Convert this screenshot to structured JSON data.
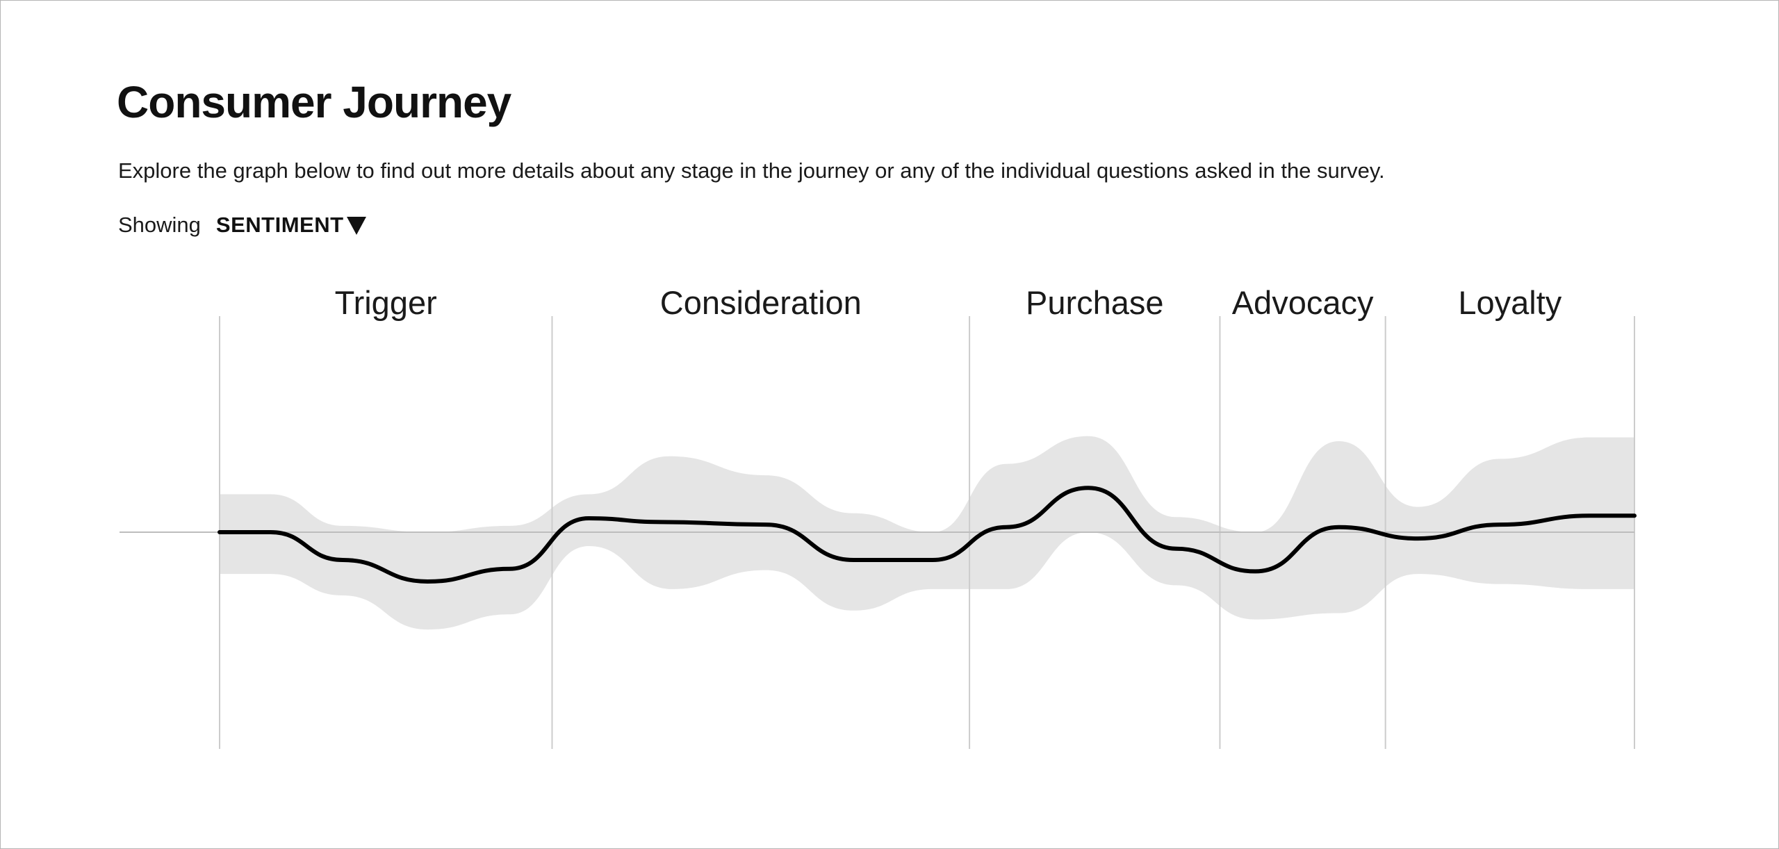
{
  "header": {
    "title": "Consumer Journey",
    "description": "Explore the graph below to find out more details about any stage in the journey or any of the individual questions asked in the survey."
  },
  "controls": {
    "showing_label": "Showing",
    "metric_value": "SENTIMENT",
    "caret_icon": "triangle-down-icon"
  },
  "colors": {
    "line": "#000000",
    "band": "#e5e5e5",
    "divider": "#cccccc",
    "baseline": "#bdbdbd"
  },
  "chart_data": {
    "type": "line",
    "title": "",
    "xlabel": "",
    "ylabel": "",
    "xlim": [
      0,
      100
    ],
    "ylim": [
      -1,
      1
    ],
    "baseline": 0,
    "grid": false,
    "stages": [
      {
        "name": "Trigger",
        "start": 0,
        "end": 23.5
      },
      {
        "name": "Consideration",
        "start": 23.5,
        "end": 53
      },
      {
        "name": "Purchase",
        "start": 53,
        "end": 70.7
      },
      {
        "name": "Advocacy",
        "start": 70.7,
        "end": 82.4
      },
      {
        "name": "Loyalty",
        "start": 82.4,
        "end": 100
      }
    ],
    "series": [
      {
        "role": "mean",
        "x": [
          0,
          3.6,
          8.7,
          14.7,
          20.5,
          26.1,
          31.2,
          38.6,
          44.8,
          50.4,
          55.6,
          61.4,
          67.6,
          73.2,
          79.1,
          84.7,
          90.5,
          96.9,
          100
        ],
        "values": [
          0,
          0,
          -0.22,
          -0.39,
          -0.29,
          0.11,
          0.08,
          0.06,
          -0.22,
          -0.22,
          0.04,
          0.35,
          -0.13,
          -0.31,
          0.04,
          -0.05,
          0.06,
          0.13,
          0.13
        ]
      },
      {
        "role": "upper",
        "x": [
          0,
          3.6,
          8.7,
          14.7,
          20.5,
          26.1,
          31.8,
          38.6,
          44.8,
          50.4,
          55.6,
          61.4,
          67.6,
          73.2,
          79.1,
          84.7,
          90.5,
          96.9,
          100
        ],
        "values": [
          0.3,
          0.3,
          0.05,
          0.0,
          0.05,
          0.3,
          0.6,
          0.45,
          0.15,
          0.0,
          0.54,
          0.76,
          0.12,
          0.0,
          0.72,
          0.2,
          0.58,
          0.75,
          0.75
        ]
      },
      {
        "role": "lower",
        "x": [
          0,
          3.6,
          8.7,
          14.7,
          20.5,
          26.1,
          32.0,
          38.6,
          44.8,
          50.4,
          55.6,
          61.4,
          67.6,
          73.2,
          79.1,
          84.7,
          90.5,
          96.9,
          100
        ],
        "values": [
          -0.33,
          -0.33,
          -0.5,
          -0.77,
          -0.65,
          -0.11,
          -0.45,
          -0.3,
          -0.62,
          -0.45,
          -0.45,
          0.0,
          -0.42,
          -0.69,
          -0.64,
          -0.33,
          -0.41,
          -0.45,
          -0.45
        ]
      }
    ]
  }
}
